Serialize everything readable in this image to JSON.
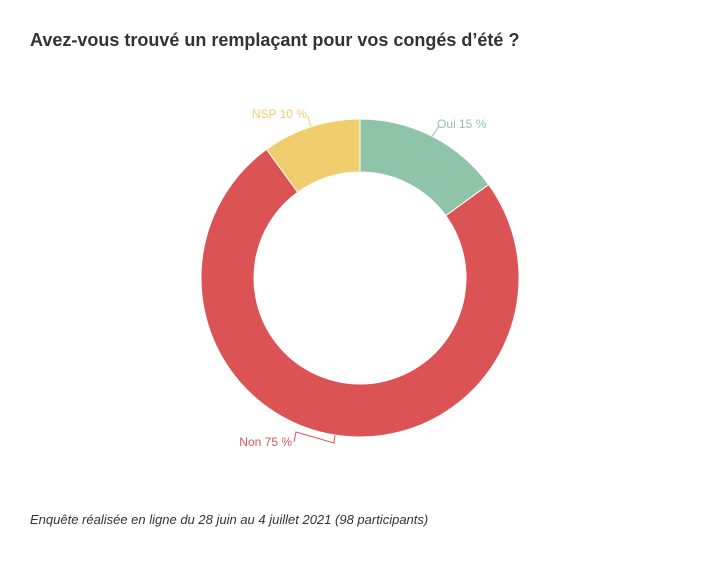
{
  "chart_data": {
    "type": "pie",
    "title": "Avez-vous trouvé un remplaçant pour vos congés d’été ?",
    "slices": [
      {
        "key": "oui",
        "label": "Oui 15 %",
        "value": 15,
        "color": "#8fc4a8"
      },
      {
        "key": "non",
        "label": "Non 75 %",
        "value": 75,
        "color": "#dc5356"
      },
      {
        "key": "nsp",
        "label": "NSP 10 %",
        "value": 10,
        "color": "#f0cd6d"
      }
    ],
    "donut": true,
    "legend": "none"
  },
  "footnote": "Enquête réalisée en ligne du 28 juin au 4 juillet 2021 (98 participants)"
}
